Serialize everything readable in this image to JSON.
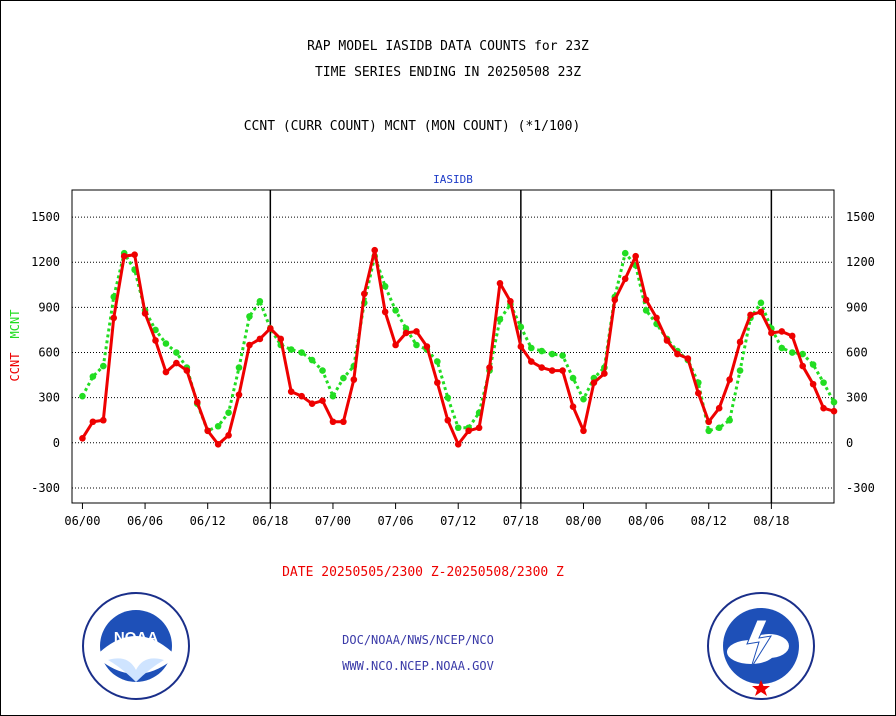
{
  "header": {
    "title_line1": "RAP MODEL IASIDB DATA COUNTS for 23Z",
    "title_line2": "TIME SERIES ENDING IN 20250508 23Z",
    "subtitle": "CCNT (CURR COUNT) MCNT (MON COUNT) (*1/100)"
  },
  "footer": {
    "date_range": "DATE 20250505/2300 Z-20250508/2300 Z",
    "org_line": "DOC/NOAA/NWS/NCEP/NCO",
    "website": "WWW.NCO.NCEP.NOAA.GOV"
  },
  "colors": {
    "ccnt": "#ee0000",
    "mcnt": "#22dd22",
    "plot_title": "#1e3cc8",
    "grid": "#000000"
  },
  "chart_data": {
    "type": "line",
    "title": "IASIDB",
    "ylabel_ccnt": "CCNT",
    "ylabel_mcnt": "MCNT",
    "ylim": [
      -400,
      1680
    ],
    "xlim": [
      -1,
      72
    ],
    "yticks": [
      -300,
      0,
      300,
      600,
      900,
      1200,
      1500
    ],
    "xtick_labels": [
      "06/00",
      "06/06",
      "06/12",
      "06/18",
      "07/00",
      "07/06",
      "07/12",
      "07/18",
      "08/00",
      "08/06",
      "08/12",
      "08/18"
    ],
    "grid": true,
    "series": [
      {
        "name": "CCNT",
        "style": "solid",
        "values": [
          30,
          140,
          150,
          830,
          1240,
          1250,
          860,
          680,
          470,
          530,
          480,
          270,
          80,
          -10,
          50,
          320,
          650,
          690,
          760,
          690,
          340,
          310,
          260,
          280,
          140,
          140,
          420,
          990,
          1280,
          870,
          650,
          730,
          740,
          640,
          400,
          150,
          -10,
          80,
          100,
          500,
          1060,
          940,
          640,
          540,
          500,
          480,
          480,
          240,
          80,
          400,
          460,
          950,
          1090,
          1240,
          950,
          830,
          680,
          590,
          560,
          330,
          140,
          230,
          420,
          670,
          850,
          870,
          730,
          740,
          710,
          510,
          390,
          230,
          210
        ]
      },
      {
        "name": "MCNT",
        "style": "dotted",
        "values": [
          310,
          440,
          510,
          970,
          1260,
          1150,
          880,
          750,
          660,
          600,
          500,
          260,
          80,
          110,
          200,
          500,
          840,
          940,
          760,
          650,
          620,
          600,
          550,
          480,
          310,
          430,
          510,
          930,
          1240,
          1040,
          880,
          760,
          650,
          620,
          540,
          300,
          100,
          100,
          200,
          480,
          820,
          920,
          770,
          630,
          610,
          590,
          580,
          430,
          290,
          430,
          500,
          970,
          1260,
          1180,
          880,
          790,
          690,
          610,
          550,
          400,
          80,
          100,
          150,
          480,
          830,
          930,
          760,
          630,
          600,
          590,
          520,
          400,
          270
        ]
      }
    ]
  }
}
